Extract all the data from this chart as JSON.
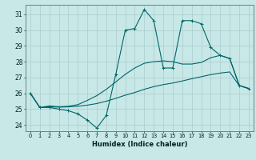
{
  "xlabel": "Humidex (Indice chaleur)",
  "background_color": "#c8e8e8",
  "grid_color": "#aacccc",
  "line_color": "#006666",
  "xlim": [
    -0.5,
    23.5
  ],
  "ylim": [
    23.6,
    31.6
  ],
  "yticks": [
    24,
    25,
    26,
    27,
    28,
    29,
    30,
    31
  ],
  "xticks": [
    0,
    1,
    2,
    3,
    4,
    5,
    6,
    7,
    8,
    9,
    10,
    11,
    12,
    13,
    14,
    15,
    16,
    17,
    18,
    19,
    20,
    21,
    22,
    23
  ],
  "line1_y": [
    26.0,
    25.1,
    25.1,
    25.0,
    24.9,
    24.7,
    24.3,
    23.8,
    24.6,
    27.2,
    30.0,
    30.1,
    31.3,
    30.6,
    27.6,
    27.6,
    30.6,
    30.6,
    30.4,
    28.9,
    28.4,
    28.2,
    26.5,
    26.3
  ],
  "line2_y": [
    26.0,
    25.1,
    25.15,
    25.12,
    25.14,
    25.18,
    25.25,
    25.35,
    25.5,
    25.68,
    25.88,
    26.05,
    26.25,
    26.42,
    26.55,
    26.65,
    26.78,
    26.92,
    27.05,
    27.18,
    27.28,
    27.35,
    26.48,
    26.3
  ],
  "line3_y": [
    26.0,
    25.1,
    25.2,
    25.15,
    25.18,
    25.28,
    25.55,
    25.85,
    26.25,
    26.72,
    27.2,
    27.6,
    27.9,
    28.0,
    28.05,
    28.0,
    27.85,
    27.85,
    27.95,
    28.25,
    28.4,
    28.2,
    26.5,
    26.3
  ]
}
